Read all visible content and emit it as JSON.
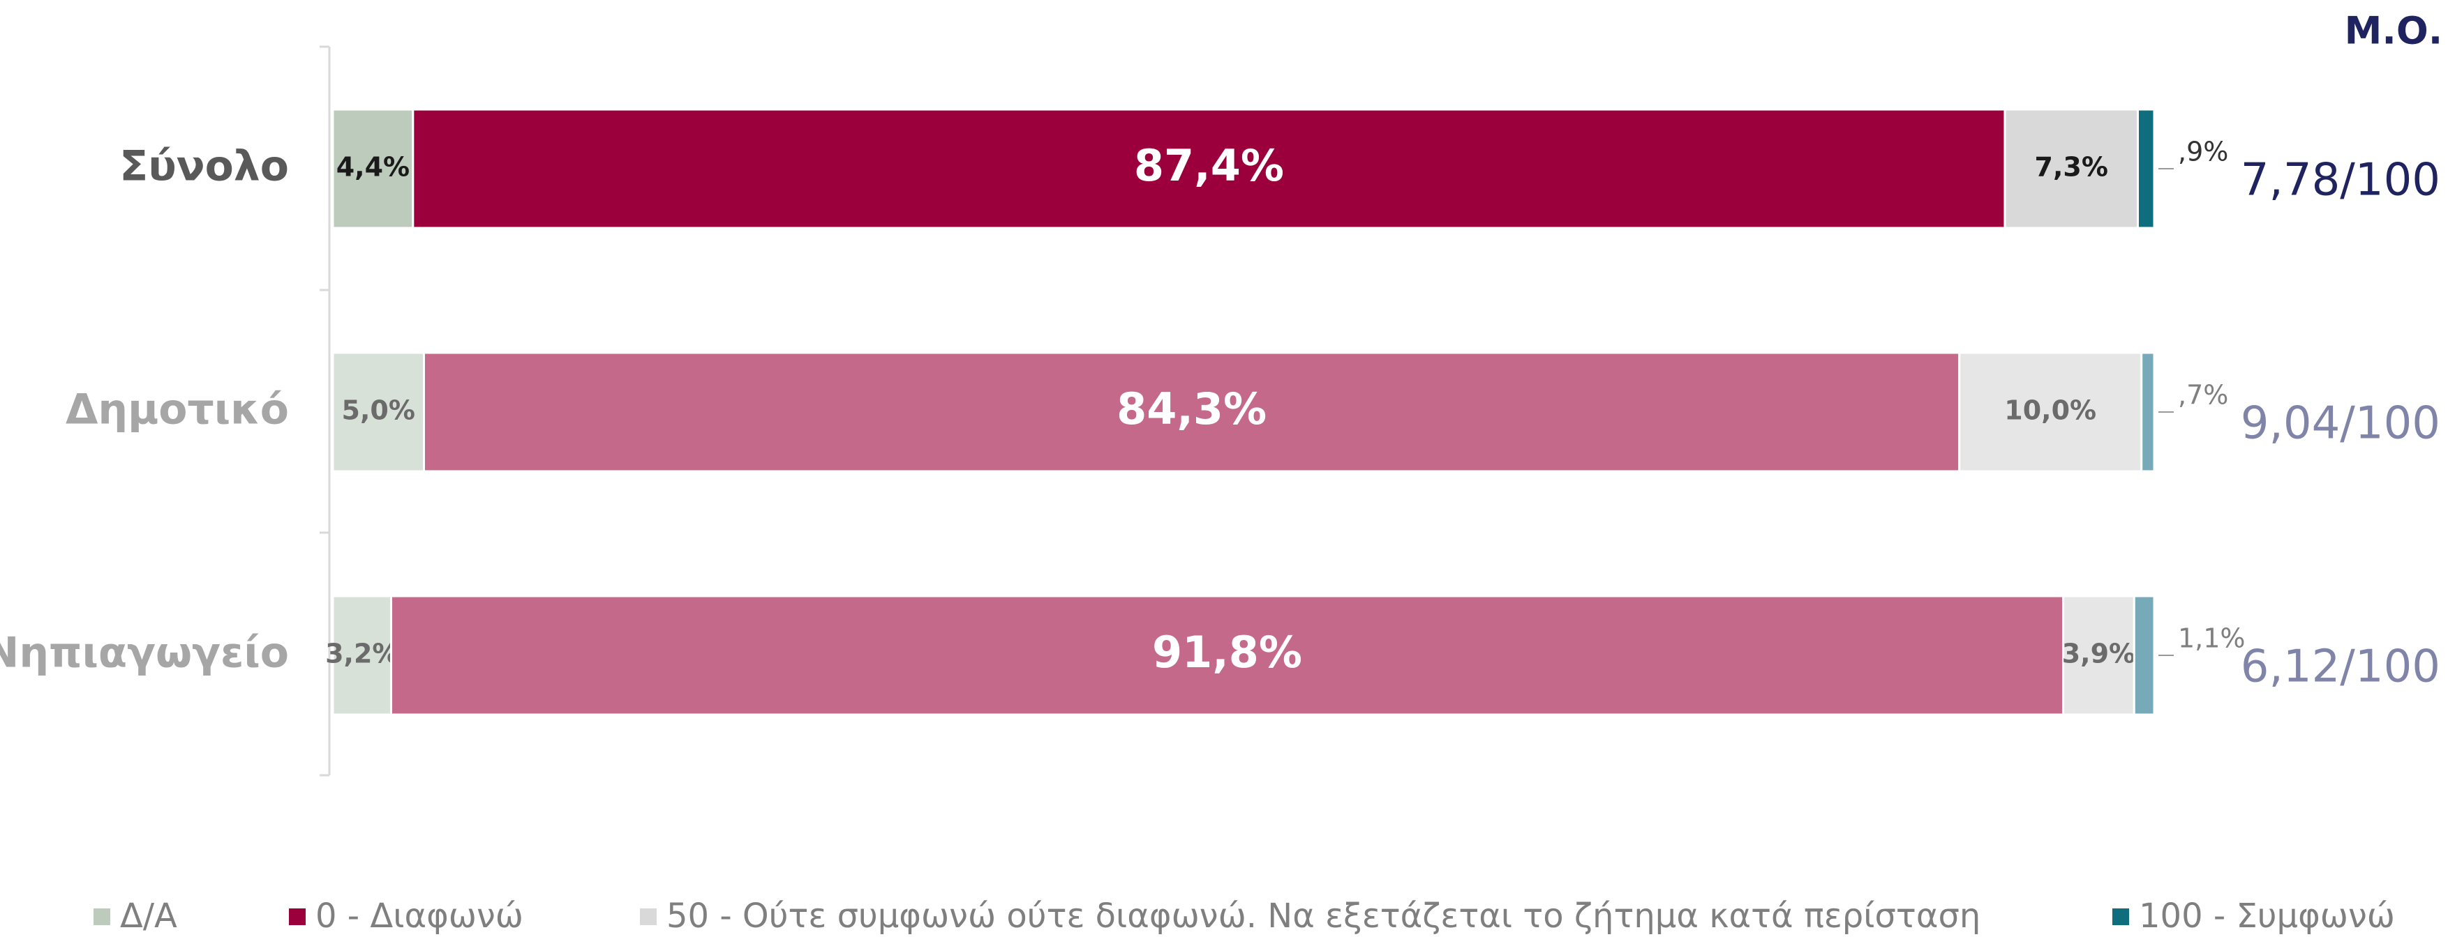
{
  "chart_data": {
    "type": "stacked_bar_horizontal",
    "categories": [
      "Σύνολο",
      "Δημοτικό",
      "Νηπιαγωγείο"
    ],
    "xlim": [
      0,
      100
    ],
    "series": [
      {
        "name": "Δ/Α",
        "color": "#bccbbb",
        "colors": [
          "#bccbbb",
          "#d8e1d7",
          "#d8e1d7"
        ],
        "values": [
          4.4,
          5.0,
          3.2
        ],
        "value_labels": [
          "4,4%",
          "5,0%",
          "3,2%"
        ]
      },
      {
        "name": "0 - Διαφωνώ",
        "color": "#9b003c",
        "colors": [
          "#9b003c",
          "#c4698a",
          "#c4698a"
        ],
        "values": [
          87.4,
          84.3,
          91.8
        ],
        "value_labels": [
          "87,4%",
          "84,3%",
          "91,8%"
        ]
      },
      {
        "name": "50 - Ούτε συμφωνώ ούτε διαφωνώ. Να εξετάζεται το ζήτημα κατά περίσταση",
        "color": "#d9d9d9",
        "colors": [
          "#d9d9d9",
          "#e6e6e6",
          "#e6e6e6"
        ],
        "values": [
          7.3,
          10.0,
          3.9
        ],
        "value_labels": [
          "7,3%",
          "10,0%",
          "3,9%"
        ]
      },
      {
        "name": "100 - Συμφωνώ",
        "color": "#0e6e7e",
        "colors": [
          "#0e6e7e",
          "#76aab8",
          "#76aab8"
        ],
        "values": [
          0.9,
          0.7,
          1.1
        ],
        "value_labels": [
          ",9%",
          ",7%",
          "1,1%"
        ]
      }
    ],
    "mean_title": "Μ.Ο.",
    "mean_labels": [
      "7,78/100",
      "9,04/100",
      "6,12/100"
    ],
    "legend": "bottom"
  }
}
